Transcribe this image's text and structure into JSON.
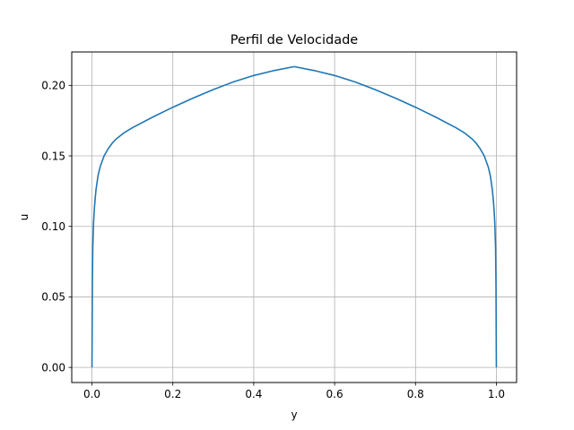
{
  "chart_data": {
    "type": "line",
    "title": "Perfil de Velocidade",
    "xlabel": "y",
    "ylabel": "u",
    "xlim": [
      -0.05,
      1.05
    ],
    "ylim": [
      -0.0107,
      0.2237
    ],
    "xticks": [
      0.0,
      0.2,
      0.4,
      0.6,
      0.8,
      1.0
    ],
    "xtick_labels": [
      "0.0",
      "0.2",
      "0.4",
      "0.6",
      "0.8",
      "1.0"
    ],
    "yticks": [
      0.0,
      0.05,
      0.1,
      0.15,
      0.2
    ],
    "ytick_labels": [
      "0.00",
      "0.05",
      "0.10",
      "0.15",
      "0.20"
    ],
    "grid": true,
    "series": [
      {
        "color": "#1f77b4",
        "x": [
          0.0,
          0.001,
          0.002,
          0.004,
          0.006,
          0.008,
          0.01,
          0.015,
          0.02,
          0.03,
          0.04,
          0.05,
          0.06,
          0.08,
          0.1,
          0.15,
          0.2,
          0.25,
          0.3,
          0.35,
          0.4,
          0.45,
          0.5,
          0.55,
          0.6,
          0.65,
          0.7,
          0.75,
          0.8,
          0.85,
          0.9,
          0.92,
          0.94,
          0.95,
          0.96,
          0.97,
          0.98,
          0.985,
          0.99,
          0.992,
          0.994,
          0.996,
          0.998,
          0.999,
          1.0
        ],
        "y": [
          0.0,
          0.06,
          0.085,
          0.103,
          0.113,
          0.12,
          0.126,
          0.136,
          0.142,
          0.15,
          0.155,
          0.159,
          0.162,
          0.1665,
          0.17,
          0.1775,
          0.1845,
          0.191,
          0.197,
          0.2025,
          0.207,
          0.2105,
          0.2133,
          0.2105,
          0.207,
          0.2025,
          0.197,
          0.191,
          0.1845,
          0.1775,
          0.17,
          0.1665,
          0.162,
          0.159,
          0.155,
          0.15,
          0.142,
          0.136,
          0.126,
          0.12,
          0.113,
          0.103,
          0.085,
          0.06,
          0.0
        ]
      }
    ]
  }
}
